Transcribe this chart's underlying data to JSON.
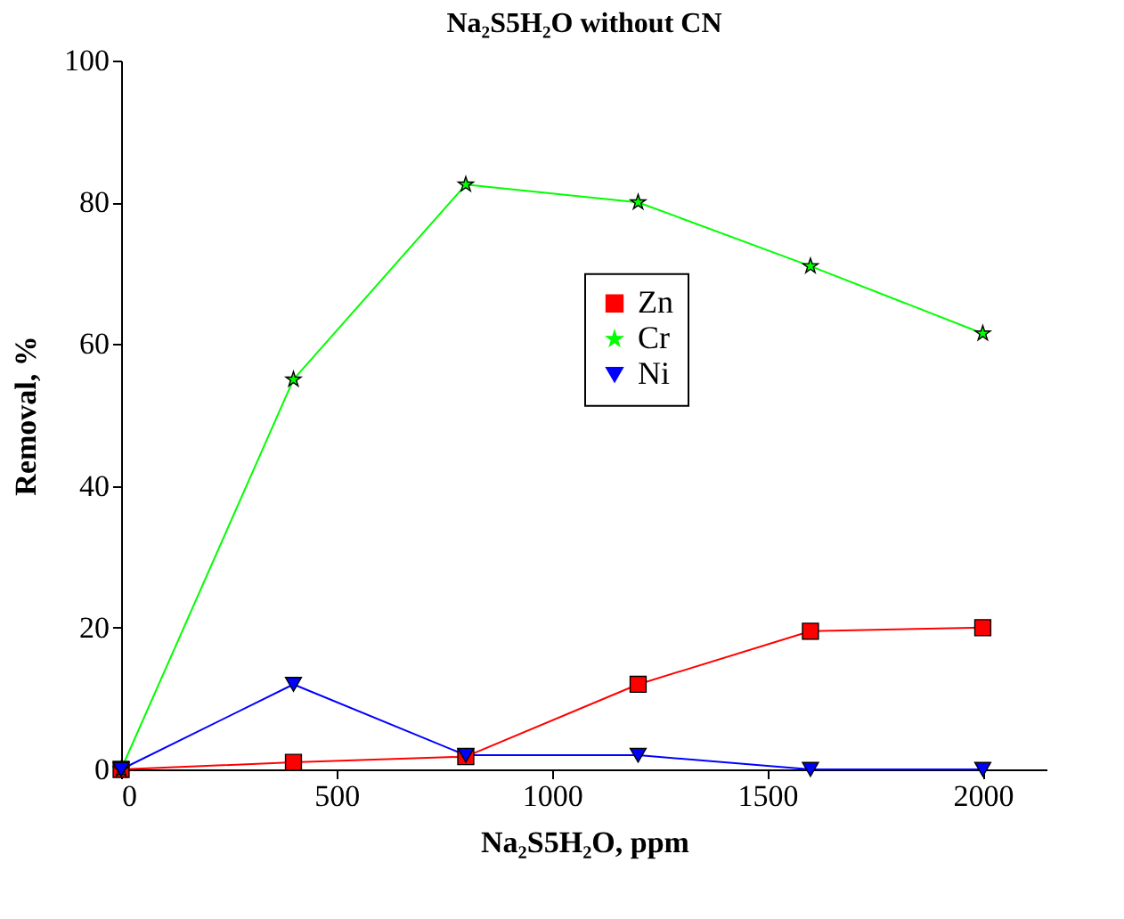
{
  "chart_data": {
    "type": "line",
    "title": "Na₂S5H₂O without CN",
    "xlabel": "Na₂S5H₂O, ppm",
    "ylabel": "Removal, %",
    "x": [
      0,
      400,
      800,
      1200,
      1600,
      2000
    ],
    "series": [
      {
        "name": "Zn",
        "color": "#ff0000",
        "marker": "square",
        "values": [
          0,
          1,
          1.8,
          12,
          19.5,
          20
        ]
      },
      {
        "name": "Cr",
        "color": "#00ff00",
        "marker": "star",
        "values": [
          0,
          55,
          82.5,
          80,
          71,
          61.5
        ]
      },
      {
        "name": "Ni",
        "color": "#0000ff",
        "marker": "triangle",
        "values": [
          0,
          12,
          2,
          2,
          0,
          0
        ]
      }
    ],
    "xlim": [
      0,
      2150
    ],
    "xticks": [
      0,
      500,
      1000,
      1500,
      2000
    ],
    "ylim": [
      0,
      100
    ],
    "yticks": [
      0,
      20,
      40,
      60,
      80,
      100
    ],
    "grid": false,
    "legend": "right",
    "line_style": "solid"
  }
}
